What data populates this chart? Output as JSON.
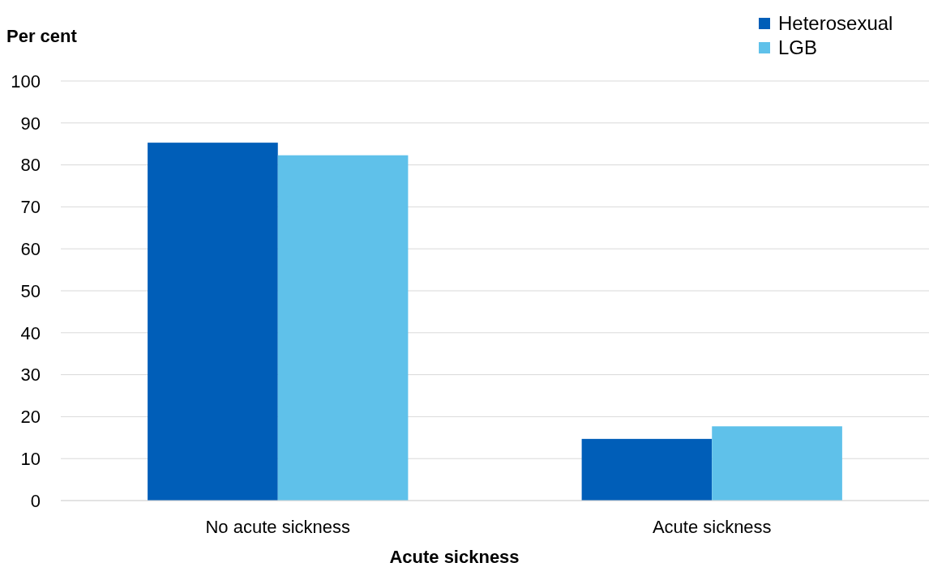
{
  "chart_data": {
    "type": "bar",
    "ylabel": "Per cent",
    "xlabel": "Acute sickness",
    "categories": [
      "No acute sickness",
      "Acute sickness"
    ],
    "series": [
      {
        "name": "Heterosexual",
        "color": "#005eb8",
        "values": [
          85.3,
          14.7
        ]
      },
      {
        "name": "LGB",
        "color": "#5fc1ea",
        "values": [
          82.3,
          17.7
        ]
      }
    ],
    "ylim": [
      0,
      100
    ],
    "yticks": [
      0,
      10,
      20,
      30,
      40,
      50,
      60,
      70,
      80,
      90,
      100
    ],
    "grid": "y",
    "legend": "top right"
  }
}
